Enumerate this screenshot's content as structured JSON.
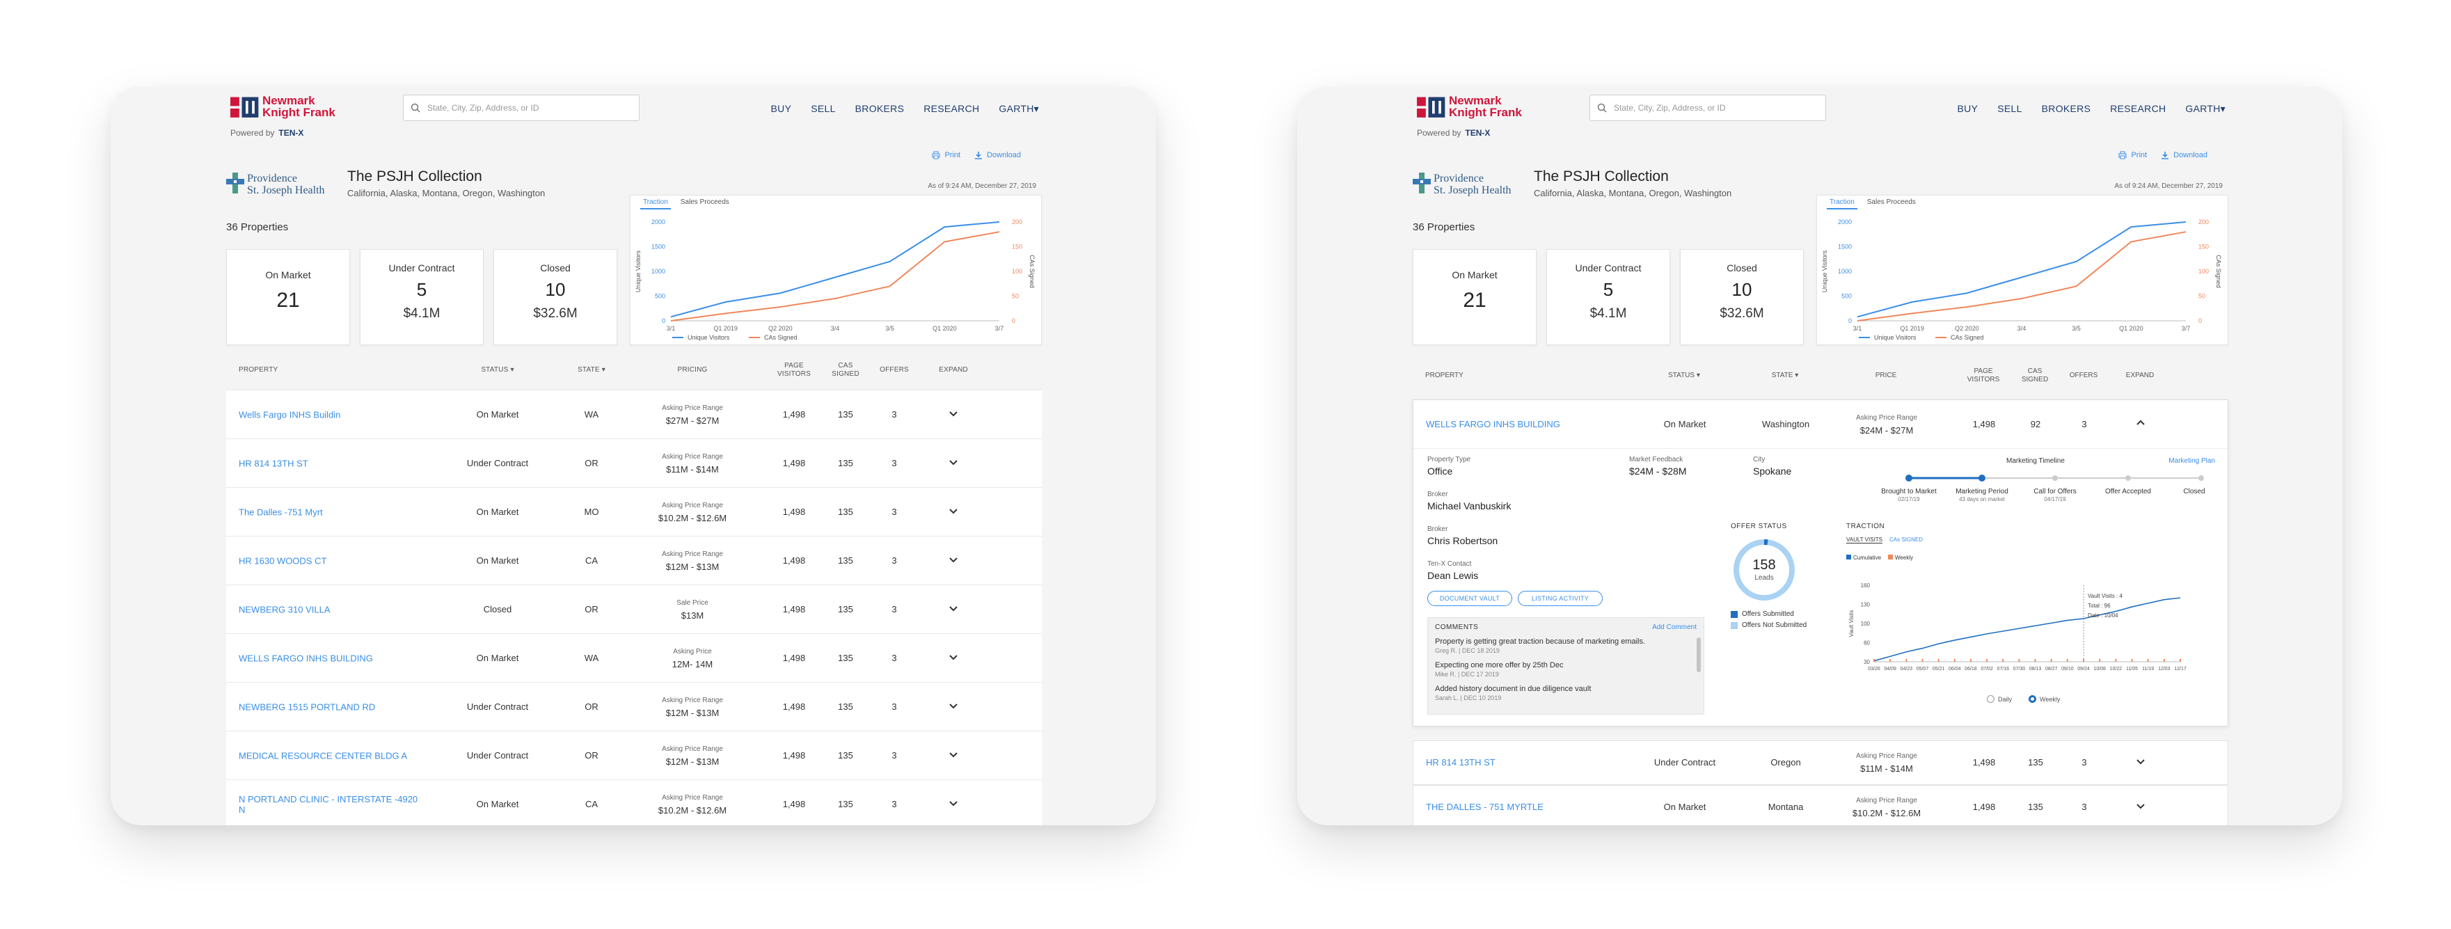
{
  "header": {
    "brand_line1": "Newmark",
    "brand_line2": "Knight Frank",
    "powered_by": "Powered by",
    "powered_brand": "TEN-X",
    "search_placeholder": "State, City, Zip, Address, or ID",
    "nav": [
      "BUY",
      "SELL",
      "BROKERS",
      "RESEARCH",
      "GARTH▾"
    ]
  },
  "collection": {
    "client_line1": "Providence",
    "client_line2": "St. Joseph Health",
    "title": "The PSJH Collection",
    "subtitle": "California, Alaska, Montana, Oregon, Washington",
    "property_count": "36 Properties",
    "print": "Print",
    "download": "Download",
    "as_of": "As of 9:24 AM, December 27, 2019"
  },
  "summary_cards": [
    {
      "label": "On Market",
      "value": "21",
      "sub": ""
    },
    {
      "label": "Under Contract",
      "value": "5",
      "sub": "$4.1M"
    },
    {
      "label": "Closed",
      "value": "10",
      "sub": "$32.6M"
    }
  ],
  "traction_chart": {
    "tab_active": "Traction",
    "tab_other": "Sales Proceeds",
    "y_left_label": "Unique Visitors",
    "y_right_label": "CAs Signed",
    "y_left_ticks": [
      "2000",
      "1500",
      "1000",
      "500",
      "0"
    ],
    "y_right_ticks": [
      "200",
      "150",
      "100",
      "50",
      "0"
    ],
    "x_ticks": [
      "3/1",
      "Q1 2019",
      "Q2 2020",
      "3/4",
      "3/5",
      "Q1 2020",
      "3/7"
    ],
    "legend": [
      "Unique Visitors",
      "CAs Signed"
    ],
    "colors": {
      "visitors": "#3a8ee6",
      "cas": "#f0875a"
    }
  },
  "chart_data": {
    "type": "line",
    "x": [
      "3/1",
      "Q1 2019",
      "Q2 2020",
      "3/4",
      "3/5",
      "Q1 2020",
      "3/7"
    ],
    "series": [
      {
        "name": "Unique Visitors",
        "values": [
          80,
          380,
          560,
          880,
          1200,
          1900,
          2000
        ]
      },
      {
        "name": "CAs Signed",
        "values": [
          0,
          15,
          28,
          45,
          70,
          160,
          180
        ]
      }
    ],
    "ylim": [
      0,
      2000
    ],
    "y2lim": [
      0,
      200
    ]
  },
  "table_left": {
    "headers": [
      "PROPERTY",
      "STATUS ▾",
      "STATE ▾",
      "PRICING",
      "PAGE VISITORS",
      "CAS SIGNED",
      "OFFERS",
      "EXPAND"
    ],
    "rows": [
      {
        "name": "Wells Fargo INHS Buildin",
        "status": "On Market",
        "state": "WA",
        "price_label": "Asking Price Range",
        "price": "$27M - $27M",
        "visitors": "1,498",
        "cas": "135",
        "offers": "3"
      },
      {
        "name": "HR 814 13TH ST",
        "status": "Under Contract",
        "state": "OR",
        "price_label": "Asking Price Range",
        "price": "$11M - $14M",
        "visitors": "1,498",
        "cas": "135",
        "offers": "3"
      },
      {
        "name": "The Dalles -751 Myrt",
        "status": "On Market",
        "state": "MO",
        "price_label": "Asking Price Range",
        "price": "$10.2M - $12.6M",
        "visitors": "1,498",
        "cas": "135",
        "offers": "3"
      },
      {
        "name": "HR 1630 WOODS CT",
        "status": "On Market",
        "state": "CA",
        "price_label": "Asking Price Range",
        "price": "$12M - $13M",
        "visitors": "1,498",
        "cas": "135",
        "offers": "3"
      },
      {
        "name": "NEWBERG 310 VILLA",
        "status": "Closed",
        "state": "OR",
        "price_label": "Sale Price",
        "price": "$13M",
        "visitors": "1,498",
        "cas": "135",
        "offers": "3"
      },
      {
        "name": "WELLS FARGO INHS BUILDING",
        "status": "On Market",
        "state": "WA",
        "price_label": "Asking Price",
        "price": "12M- 14M",
        "visitors": "1,498",
        "cas": "135",
        "offers": "3"
      },
      {
        "name": "NEWBERG 1515 PORTLAND RD",
        "status": "Under Contract",
        "state": "OR",
        "price_label": "Asking Price Range",
        "price": "$12M - $13M",
        "visitors": "1,498",
        "cas": "135",
        "offers": "3"
      },
      {
        "name": "MEDICAL RESOURCE CENTER BLDG A",
        "status": "Under Contract",
        "state": "OR",
        "price_label": "Asking Price Range",
        "price": "$12M - $13M",
        "visitors": "1,498",
        "cas": "135",
        "offers": "3"
      },
      {
        "name": "N PORTLAND CLINIC - INTERSTATE -4920 N",
        "status": "On Market",
        "state": "CA",
        "price_label": "Asking Price Range",
        "price": "$10.2M - $12.6M",
        "visitors": "1,498",
        "cas": "135",
        "offers": "3"
      }
    ]
  },
  "table_right": {
    "headers": [
      "PROPERTY",
      "STATUS ▾",
      "STATE ▾",
      "PRICE",
      "PAGE VISITORS",
      "CAS SIGNED",
      "OFFERS",
      "EXPAND"
    ],
    "expanded": {
      "name": "WELLS FARGO INHS BUILDING",
      "status": "On Market",
      "state": "Washington",
      "price_label": "Asking Price Range",
      "price": "$24M - $27M",
      "visitors": "1,498",
      "cas": "92",
      "offers": "3",
      "property_type_label": "Property Type",
      "property_type": "Office",
      "feedback_label": "Market Feedback",
      "feedback": "$24M - $28M",
      "city_label": "City",
      "city": "Spokane",
      "broker1_label": "Broker",
      "broker1": "Michael Vanbuskirk",
      "broker2_label": "Broker",
      "broker2": "Chris Robertson",
      "contact_label": "Ten-X Contact",
      "contact": "Dean Lewis",
      "btn_vault": "DOCUMENT VAULT",
      "btn_activity": "LISTING ACTIVITY",
      "timeline_title": "Marketing Timeline",
      "timeline_link": "Marketing Plan",
      "timeline_steps": [
        {
          "label": "Brought to Market",
          "sub": "02/17/19"
        },
        {
          "label": "Marketing Period",
          "sub": "43 days on market"
        },
        {
          "label": "Call for Offers",
          "sub": "04/17/19"
        },
        {
          "label": "Offer Accepted",
          "sub": ""
        },
        {
          "label": "Closed",
          "sub": ""
        }
      ],
      "offer_status_title": "OFFER STATUS",
      "leads_value": "158",
      "leads_label": "Leads",
      "offers_submitted": "Offers Submitted",
      "offers_not_submitted": "Offers Not Submitted",
      "traction_title": "TRACTION",
      "traction_tab_a": "VAULT VISITS",
      "traction_tab_b": "CAs SIGNED",
      "legend_cumulative": "Cumulative",
      "legend_weekly": "Weekly",
      "y_label": "Vault Visits",
      "y_ticks": [
        "160",
        "130",
        "100",
        "60",
        "30"
      ],
      "x_ticks": [
        "03/26",
        "04/09",
        "04/23",
        "05/07",
        "05/21",
        "06/04",
        "06/18",
        "07/02",
        "07/16",
        "07/30",
        "08/13",
        "08/27",
        "09/10",
        "09/24",
        "10/08",
        "10/22",
        "11/05",
        "11/19",
        "12/03",
        "12/17"
      ],
      "tooltip": [
        "Vault Visits : 4",
        "Total : 96",
        "Date : 10/04"
      ],
      "radio_daily": "Daily",
      "radio_weekly": "Weekly",
      "comments_title": "COMMENTS",
      "add_comment": "Add Comment",
      "comments": [
        {
          "text": "Property is getting great traction because of marketing emails.",
          "meta": "Greg R. | DEC 18 2019"
        },
        {
          "text": "Expecting one more offer by 25th Dec",
          "meta": "Mike R. | DEC 17 2019"
        },
        {
          "text": "Added history document in due diligence vault",
          "meta": "Sarah L. | DEC 10 2019"
        }
      ]
    },
    "rows": [
      {
        "name": "HR 814 13TH ST",
        "status": "Under Contract",
        "state": "Oregon",
        "price_label": "Asking Price Range",
        "price": "$11M - $14M",
        "visitors": "1,498",
        "cas": "135",
        "offers": "3"
      },
      {
        "name": "THE DALLES - 751 MYRTLE",
        "status": "On Market",
        "state": "Montana",
        "price_label": "Asking Price Range",
        "price": "$10.2M - $12.6M",
        "visitors": "1,498",
        "cas": "135",
        "offers": "3"
      }
    ]
  }
}
